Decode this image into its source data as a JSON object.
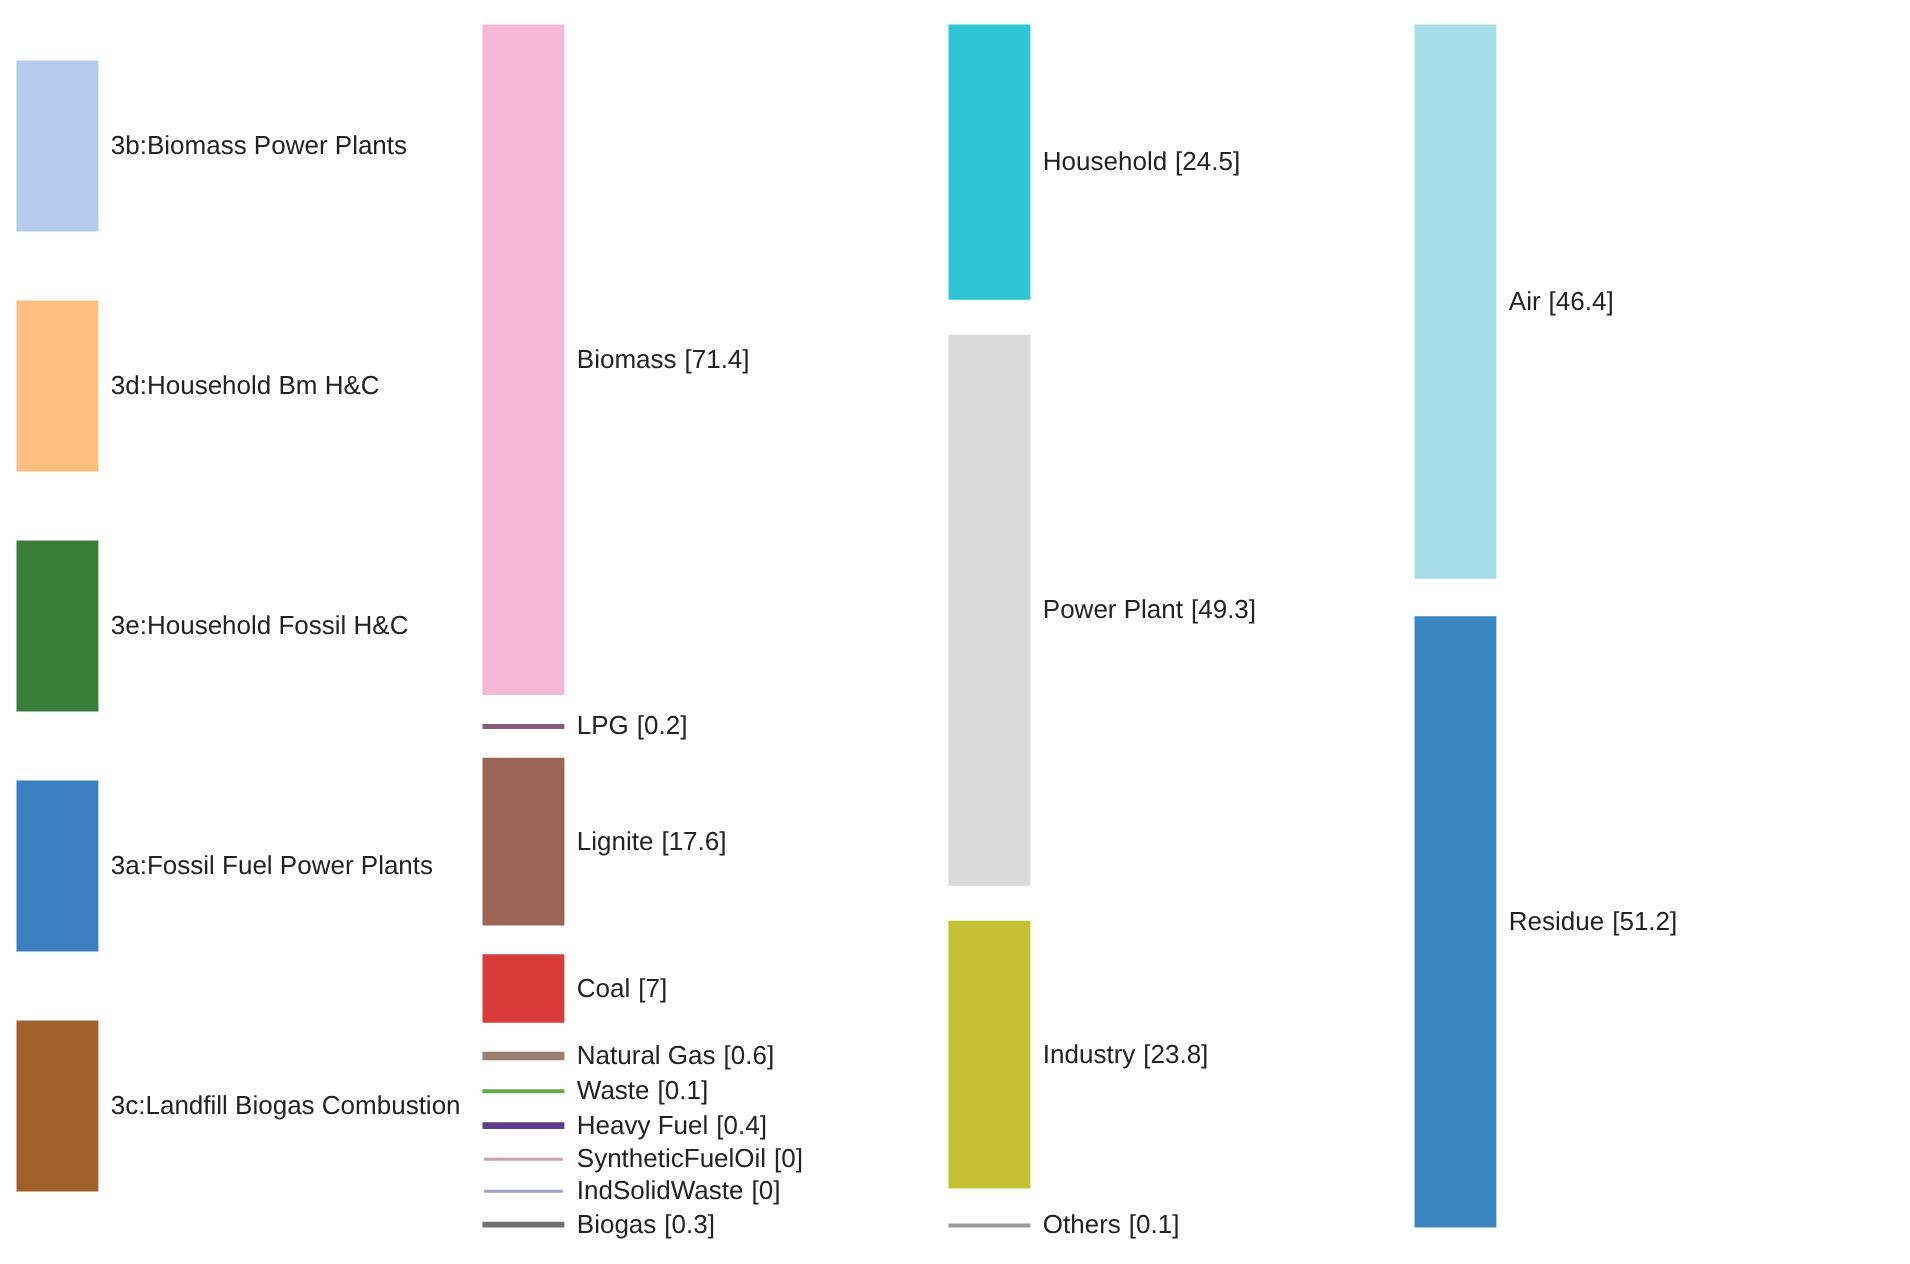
{
  "chart_data": [
    {
      "type": "other",
      "categories": [
        "3b:Biomass Power Plants",
        "3d:Household Bm H&C",
        "3e:Household Fossil H&C",
        "3a:Fossil Fuel Power Plants",
        "3c:Landfill Biogas Combustion"
      ],
      "colors": [
        "#b4cbea",
        "#fdbf80",
        "#3a7d3a",
        "#3b7fc0",
        "#a0622a"
      ]
    },
    {
      "type": "other",
      "categories": [
        "Biomass",
        "LPG",
        "Lignite",
        "Coal",
        "Natural Gas",
        "Waste",
        "Heavy Fuel",
        "SyntheticFuelOil",
        "IndSolidWaste",
        "Biogas"
      ],
      "values": [
        71.4,
        0.2,
        17.6,
        7,
        0.6,
        0.1,
        0.4,
        0,
        0,
        0.3
      ],
      "value_labels": [
        "[71.4]",
        "[0.2]",
        "[17.6]",
        "[7]",
        "[0.6]",
        "[0.1]",
        "[0.4]",
        "[0]",
        "[0]",
        "[0.3]"
      ],
      "colors": [
        "#f5b8d6",
        "#8a5a7a",
        "#9c6457",
        "#d93a3a",
        "#9c7f70",
        "#6aa84f",
        "#5a3f8a",
        "#c9a0b0",
        "#a0a0c8",
        "#707070"
      ]
    },
    {
      "type": "other",
      "categories": [
        "Household",
        "Power Plant",
        "Industry",
        "Others"
      ],
      "values": [
        24.5,
        49.3,
        23.8,
        0.1
      ],
      "value_labels": [
        "[24.5]",
        "[49.3]",
        "[23.8]",
        "[0.1]"
      ],
      "colors": [
        "#2ec4d4",
        "#d9d9d9",
        "#c4c234",
        "#999999"
      ]
    },
    {
      "type": "other",
      "categories": [
        "Air",
        "Residue"
      ],
      "values": [
        46.4,
        51.2
      ],
      "value_labels": [
        "[46.4]",
        "[51.2]"
      ],
      "colors": [
        "#a8dde8",
        "#3b86c0"
      ]
    }
  ]
}
